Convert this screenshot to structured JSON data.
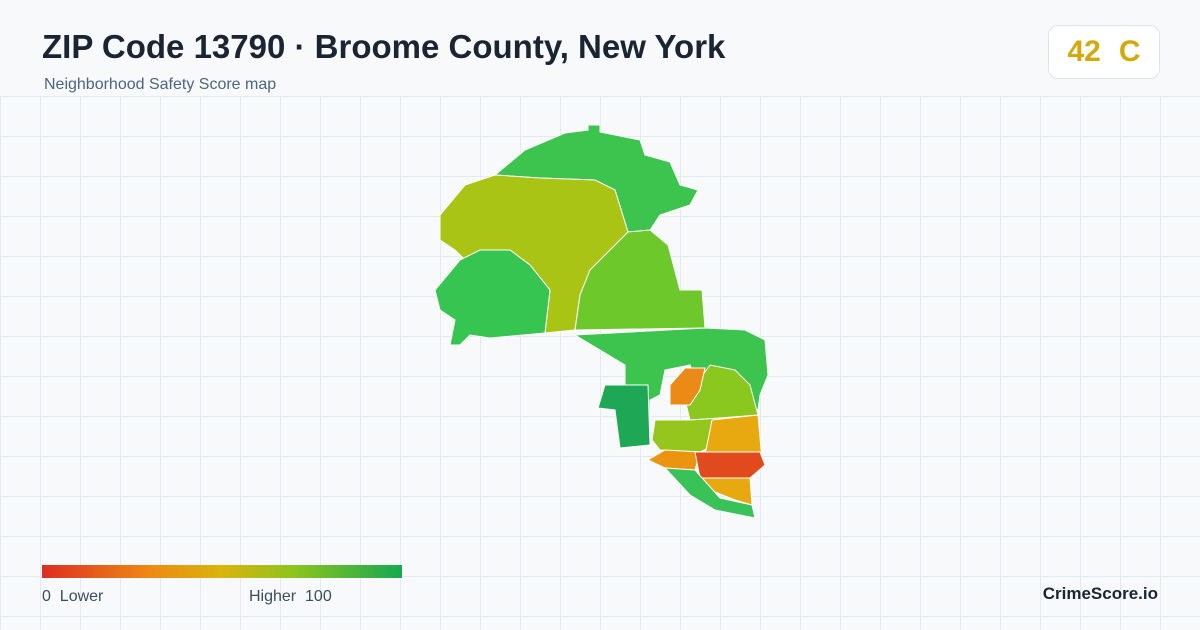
{
  "header": {
    "title": "ZIP Code 13790 · Broome County, New York",
    "subtitle": "Neighborhood Safety Score map"
  },
  "score": {
    "value": 42,
    "grade": "C"
  },
  "legend": {
    "min": 0,
    "min_label": "Lower",
    "max_label": "Higher",
    "max": 100
  },
  "brand": "CrimeScore.io"
}
